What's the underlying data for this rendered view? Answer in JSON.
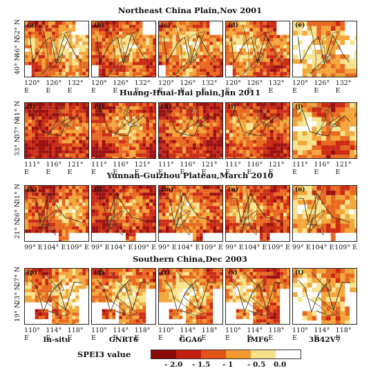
{
  "rows": [
    {
      "title": "Northeast China Plain,Nov 2001",
      "ylabels": [
        "40° N",
        "46° N",
        "52° N"
      ],
      "xlabels": [
        "120° E",
        "126° E",
        "132° E"
      ],
      "panels": [
        "(a)",
        "(b)",
        "(c)",
        "(d)",
        "(e)"
      ]
    },
    {
      "title": "Huang-Huai-Hai plain,Jan 2011",
      "ylabels": [
        "33° N",
        "37° N",
        "41° N"
      ],
      "xlabels": [
        "111° E",
        "116° E",
        "121° E"
      ],
      "panels": [
        "(f)",
        "(g)",
        "(h)",
        "(i)",
        "(j)"
      ]
    },
    {
      "title": "Yunnan-Guizhou Plateau,March 2010",
      "ylabels": [
        "21° N",
        "26° N",
        "31° N"
      ],
      "xlabels": [
        "99° E",
        "104° E",
        "109° E"
      ],
      "panels": [
        "(k)",
        "(l)",
        "(m)",
        "(n)",
        "(o)"
      ]
    },
    {
      "title": "Southern China,Dec 2003",
      "ylabels": [
        "19° N",
        "23° N",
        "27° N"
      ],
      "xlabels": [
        "110° E",
        "114° E",
        "118° E"
      ],
      "panels": [
        "(p)",
        "(q)",
        "(r)",
        "(s)",
        "(t)"
      ]
    }
  ],
  "columns": [
    "In-situ",
    "GNRT6",
    "GGA6",
    "IMF6",
    "3B42V7"
  ],
  "legend": {
    "title": "SPEI3 value",
    "ticks": [
      "- 2.0",
      "- 1.5",
      "- 1",
      "- 0.5",
      "0.0"
    ],
    "colors": [
      "#8b0a0a",
      "#c42010",
      "#e2531a",
      "#f29a30",
      "#f7e08a",
      "#ffffff"
    ]
  },
  "palette": {
    "dark": "#9c1010",
    "red": "#cc2a14",
    "orange": "#e8681f",
    "amber": "#f3a63a",
    "yellow": "#f6e48e",
    "white": "#ffffff"
  }
}
